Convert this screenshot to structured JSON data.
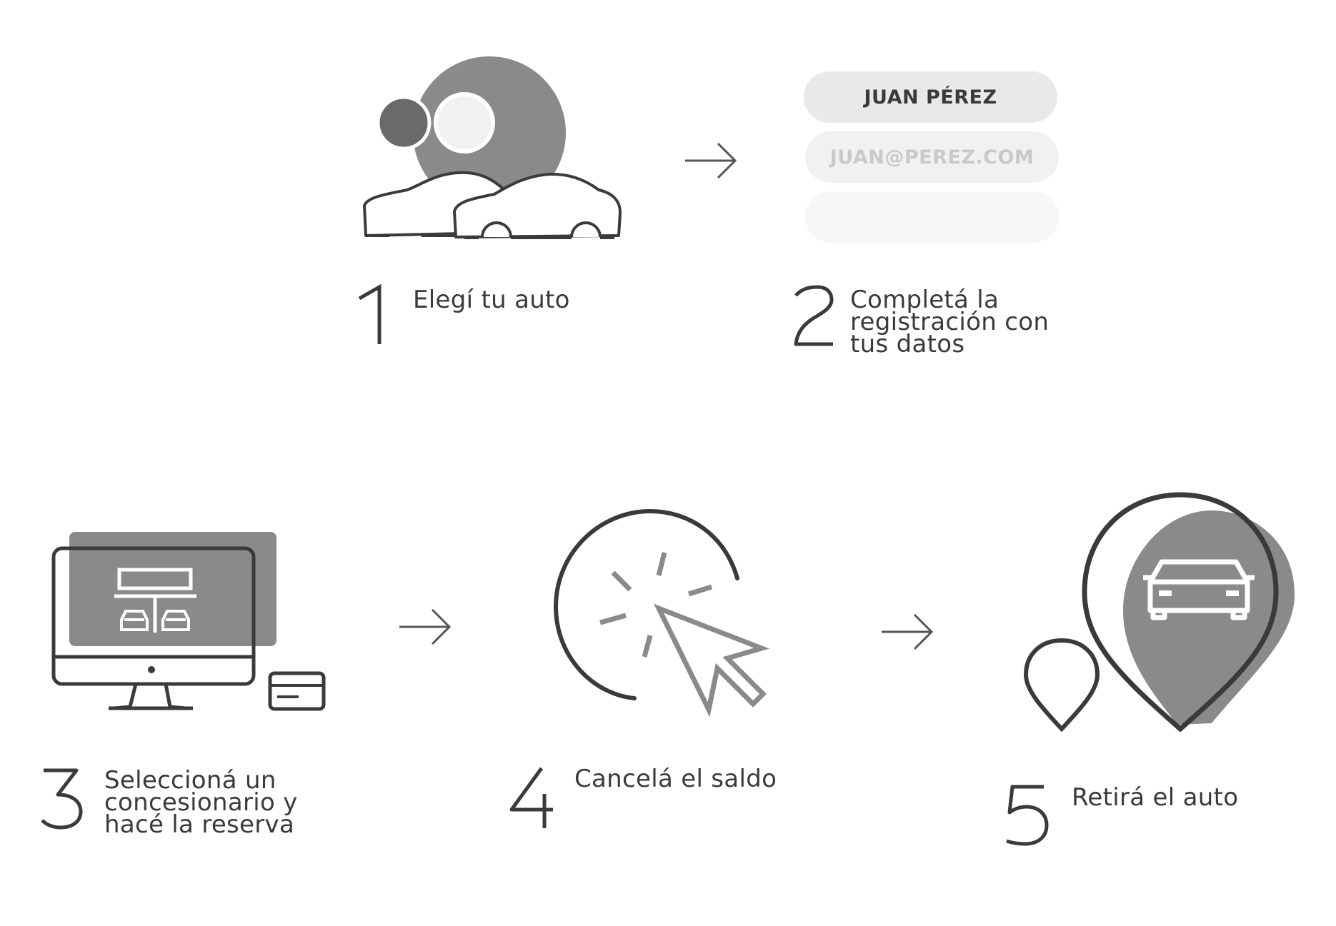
{
  "colors": {
    "dark": "#3a3a3a",
    "mid_gray": "#8a8a8a",
    "dark_gray": "#6a6a6a",
    "light_gray": "#e9e9e9",
    "lighter_gray": "#f1f1f1",
    "lightest_gray": "#f6f6f6"
  },
  "steps": [
    {
      "number": "1",
      "lines": [
        "Elegí tu auto"
      ],
      "icon": "car-choice-icon"
    },
    {
      "number": "2",
      "lines": [
        "Completá la",
        "registración con",
        "tus datos"
      ],
      "icon": "registration-form-icon"
    },
    {
      "number": "3",
      "lines": [
        "Seleccioná un",
        "concesionario y",
        "hacé la reserva"
      ],
      "icon": "computer-dealer-icon"
    },
    {
      "number": "4",
      "lines": [
        "Cancelá el saldo"
      ],
      "icon": "cursor-click-icon"
    },
    {
      "number": "5",
      "lines": [
        "Retirá el auto"
      ],
      "icon": "location-pin-car-icon"
    }
  ],
  "form": {
    "name_value": "JUAN PÉREZ",
    "email_value": "JUAN@PEREZ.COM",
    "third_value": ""
  },
  "arrows": [
    "arrow-right-icon",
    "arrow-right-icon",
    "arrow-right-icon"
  ]
}
